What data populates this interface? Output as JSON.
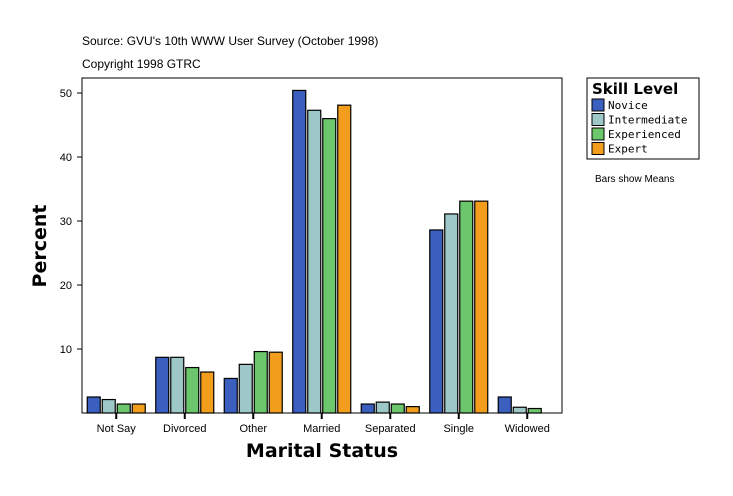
{
  "chart_data": {
    "type": "bar",
    "subtitle_lines": [
      "Source: GVU's 10th WWW User Survey (October 1998)",
      "Copyright 1998 GTRC"
    ],
    "xlabel": "Marital Status",
    "ylabel": "Percent",
    "ylim": [
      0,
      52
    ],
    "yticks": [
      10,
      20,
      30,
      40,
      50
    ],
    "grid": false,
    "legend_title": "Skill Level",
    "legend_position": "right",
    "note": "Bars show Means",
    "categories": [
      "Not Say",
      "Divorced",
      "Other",
      "Married",
      "Separated",
      "Single",
      "Widowed"
    ],
    "series": [
      {
        "name": "Novice",
        "color": "#3a5fbf",
        "values": [
          2.5,
          8.7,
          5.4,
          50.4,
          1.4,
          28.6,
          2.5
        ]
      },
      {
        "name": "Intermediate",
        "color": "#9ec8c8",
        "values": [
          2.1,
          8.7,
          7.6,
          47.3,
          1.7,
          31.1,
          0.9
        ]
      },
      {
        "name": "Experienced",
        "color": "#6cc66c",
        "values": [
          1.4,
          7.1,
          9.6,
          46.0,
          1.4,
          33.1,
          0.7
        ]
      },
      {
        "name": "Expert",
        "color": "#f29e1c",
        "values": [
          1.4,
          6.4,
          9.5,
          48.1,
          1.0,
          33.1,
          null
        ]
      }
    ]
  }
}
